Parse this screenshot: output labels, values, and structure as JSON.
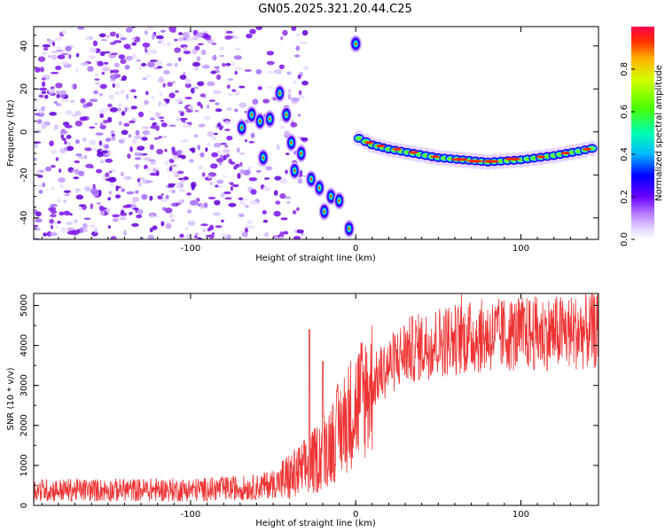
{
  "title": "GN05.2025.321.20.44.C25",
  "colors": {
    "snr_line": "#ee3333",
    "frame": "#000000",
    "scatter_purple": "#8a2be2"
  },
  "chart_data": [
    {
      "type": "heatmap",
      "name": "spectrogram",
      "xlabel": "Height of straight line (km)",
      "ylabel": "Frequency (Hz)",
      "xlim": [
        -195,
        147
      ],
      "ylim": [
        -50,
        49
      ],
      "xticks": [
        -100,
        0,
        100
      ],
      "yticks": [
        -40,
        -20,
        0,
        20,
        40
      ],
      "colorbar": {
        "label": "Normalized spectral amplitude",
        "range": [
          0,
          1
        ],
        "ticks": [
          "0.0",
          "0.2",
          "0.4",
          "0.6",
          "0.8"
        ]
      },
      "features": {
        "noise_region_x": [
          -195,
          -45
        ],
        "descending_track": [
          [
            -69,
            2
          ],
          [
            -63,
            8
          ],
          [
            -58,
            5
          ],
          [
            -56,
            -12
          ],
          [
            -52,
            6
          ],
          [
            -46,
            18
          ],
          [
            -42,
            8
          ],
          [
            -39,
            -5
          ],
          [
            -37,
            -18
          ],
          [
            -33,
            -10
          ],
          [
            -27,
            -22
          ],
          [
            -22,
            -26
          ],
          [
            -19,
            -37
          ],
          [
            -15,
            -30
          ],
          [
            -10,
            -32
          ],
          [
            -4,
            -45
          ]
        ],
        "spike_point": [
          0,
          41
        ],
        "ridge_line": [
          [
            2,
            -3
          ],
          [
            10,
            -6
          ],
          [
            20,
            -8
          ],
          [
            35,
            -10
          ],
          [
            50,
            -12
          ],
          [
            65,
            -13
          ],
          [
            80,
            -14
          ],
          [
            100,
            -13
          ],
          [
            120,
            -11
          ],
          [
            135,
            -9
          ],
          [
            147,
            -7
          ]
        ]
      }
    },
    {
      "type": "line",
      "name": "snr",
      "xlabel": "Height of straight line (km)",
      "ylabel": "SNR (10 * v/v)",
      "xlim": [
        -195,
        147
      ],
      "ylim": [
        0,
        5300
      ],
      "xticks": [
        -100,
        0,
        100
      ],
      "yticks": [
        0,
        1000,
        2000,
        3000,
        4000,
        5000
      ],
      "series": [
        {
          "name": "SNR",
          "envelope": {
            "x": [
              -195,
              -100,
              -60,
              -45,
              -35,
              -25,
              -15,
              0,
              15,
              30,
              50,
              80,
              110,
              147
            ],
            "y": [
              380,
              390,
              450,
              600,
              800,
              1100,
              1600,
              2500,
              3300,
              3850,
              4100,
              4250,
              4300,
              4350
            ]
          }
        }
      ],
      "spikes": [
        [
          -28,
          4400
        ],
        [
          -20,
          3600
        ]
      ]
    }
  ]
}
